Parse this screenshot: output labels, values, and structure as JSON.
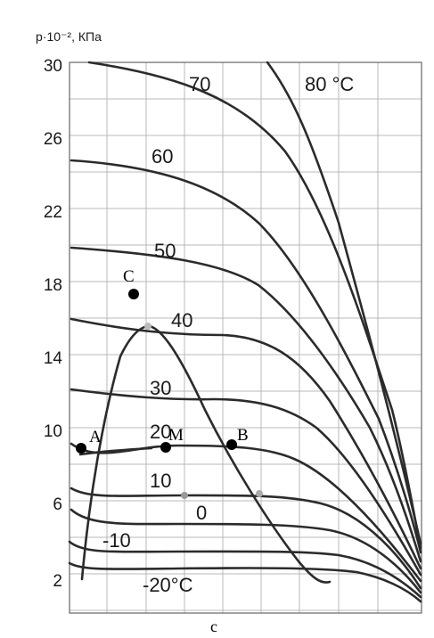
{
  "chart_data": {
    "type": "line",
    "title": "",
    "ylabel": "p·10⁻², КПа",
    "xlabel": "",
    "caption": "c",
    "ylim": [
      0,
      30
    ],
    "yticks": [
      "30",
      "26",
      "22",
      "18",
      "14",
      "10",
      "6",
      "2"
    ],
    "grid": true,
    "isotherm_labels": [
      "70",
      "80 °C",
      "60",
      "50",
      "40",
      "30",
      "20",
      "10",
      "0",
      "-10",
      "-20°C"
    ],
    "points": [
      {
        "label": "A"
      },
      {
        "label": "M"
      },
      {
        "label": "B"
      },
      {
        "label": "C"
      }
    ]
  }
}
